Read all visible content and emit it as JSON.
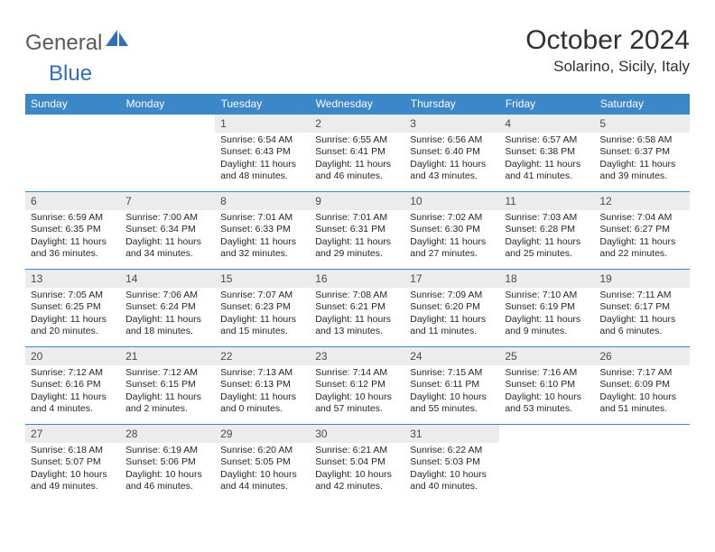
{
  "logo": {
    "text1": "General",
    "text2": "Blue"
  },
  "title": "October 2024",
  "location": "Solarino, Sicily, Italy",
  "colors": {
    "header_bg": "#3c87c8",
    "header_text": "#ffffff",
    "daynum_bg": "#ececec",
    "rule": "#3c87c8",
    "logo_gray": "#59595b",
    "logo_blue": "#2f6fb8"
  },
  "dayNames": [
    "Sunday",
    "Monday",
    "Tuesday",
    "Wednesday",
    "Thursday",
    "Friday",
    "Saturday"
  ],
  "weeks": [
    [
      {
        "n": "",
        "sr": "",
        "ss": "",
        "dl": ""
      },
      {
        "n": "",
        "sr": "",
        "ss": "",
        "dl": ""
      },
      {
        "n": "1",
        "sr": "Sunrise: 6:54 AM",
        "ss": "Sunset: 6:43 PM",
        "dl": "Daylight: 11 hours and 48 minutes."
      },
      {
        "n": "2",
        "sr": "Sunrise: 6:55 AM",
        "ss": "Sunset: 6:41 PM",
        "dl": "Daylight: 11 hours and 46 minutes."
      },
      {
        "n": "3",
        "sr": "Sunrise: 6:56 AM",
        "ss": "Sunset: 6:40 PM",
        "dl": "Daylight: 11 hours and 43 minutes."
      },
      {
        "n": "4",
        "sr": "Sunrise: 6:57 AM",
        "ss": "Sunset: 6:38 PM",
        "dl": "Daylight: 11 hours and 41 minutes."
      },
      {
        "n": "5",
        "sr": "Sunrise: 6:58 AM",
        "ss": "Sunset: 6:37 PM",
        "dl": "Daylight: 11 hours and 39 minutes."
      }
    ],
    [
      {
        "n": "6",
        "sr": "Sunrise: 6:59 AM",
        "ss": "Sunset: 6:35 PM",
        "dl": "Daylight: 11 hours and 36 minutes."
      },
      {
        "n": "7",
        "sr": "Sunrise: 7:00 AM",
        "ss": "Sunset: 6:34 PM",
        "dl": "Daylight: 11 hours and 34 minutes."
      },
      {
        "n": "8",
        "sr": "Sunrise: 7:01 AM",
        "ss": "Sunset: 6:33 PM",
        "dl": "Daylight: 11 hours and 32 minutes."
      },
      {
        "n": "9",
        "sr": "Sunrise: 7:01 AM",
        "ss": "Sunset: 6:31 PM",
        "dl": "Daylight: 11 hours and 29 minutes."
      },
      {
        "n": "10",
        "sr": "Sunrise: 7:02 AM",
        "ss": "Sunset: 6:30 PM",
        "dl": "Daylight: 11 hours and 27 minutes."
      },
      {
        "n": "11",
        "sr": "Sunrise: 7:03 AM",
        "ss": "Sunset: 6:28 PM",
        "dl": "Daylight: 11 hours and 25 minutes."
      },
      {
        "n": "12",
        "sr": "Sunrise: 7:04 AM",
        "ss": "Sunset: 6:27 PM",
        "dl": "Daylight: 11 hours and 22 minutes."
      }
    ],
    [
      {
        "n": "13",
        "sr": "Sunrise: 7:05 AM",
        "ss": "Sunset: 6:25 PM",
        "dl": "Daylight: 11 hours and 20 minutes."
      },
      {
        "n": "14",
        "sr": "Sunrise: 7:06 AM",
        "ss": "Sunset: 6:24 PM",
        "dl": "Daylight: 11 hours and 18 minutes."
      },
      {
        "n": "15",
        "sr": "Sunrise: 7:07 AM",
        "ss": "Sunset: 6:23 PM",
        "dl": "Daylight: 11 hours and 15 minutes."
      },
      {
        "n": "16",
        "sr": "Sunrise: 7:08 AM",
        "ss": "Sunset: 6:21 PM",
        "dl": "Daylight: 11 hours and 13 minutes."
      },
      {
        "n": "17",
        "sr": "Sunrise: 7:09 AM",
        "ss": "Sunset: 6:20 PM",
        "dl": "Daylight: 11 hours and 11 minutes."
      },
      {
        "n": "18",
        "sr": "Sunrise: 7:10 AM",
        "ss": "Sunset: 6:19 PM",
        "dl": "Daylight: 11 hours and 9 minutes."
      },
      {
        "n": "19",
        "sr": "Sunrise: 7:11 AM",
        "ss": "Sunset: 6:17 PM",
        "dl": "Daylight: 11 hours and 6 minutes."
      }
    ],
    [
      {
        "n": "20",
        "sr": "Sunrise: 7:12 AM",
        "ss": "Sunset: 6:16 PM",
        "dl": "Daylight: 11 hours and 4 minutes."
      },
      {
        "n": "21",
        "sr": "Sunrise: 7:12 AM",
        "ss": "Sunset: 6:15 PM",
        "dl": "Daylight: 11 hours and 2 minutes."
      },
      {
        "n": "22",
        "sr": "Sunrise: 7:13 AM",
        "ss": "Sunset: 6:13 PM",
        "dl": "Daylight: 11 hours and 0 minutes."
      },
      {
        "n": "23",
        "sr": "Sunrise: 7:14 AM",
        "ss": "Sunset: 6:12 PM",
        "dl": "Daylight: 10 hours and 57 minutes."
      },
      {
        "n": "24",
        "sr": "Sunrise: 7:15 AM",
        "ss": "Sunset: 6:11 PM",
        "dl": "Daylight: 10 hours and 55 minutes."
      },
      {
        "n": "25",
        "sr": "Sunrise: 7:16 AM",
        "ss": "Sunset: 6:10 PM",
        "dl": "Daylight: 10 hours and 53 minutes."
      },
      {
        "n": "26",
        "sr": "Sunrise: 7:17 AM",
        "ss": "Sunset: 6:09 PM",
        "dl": "Daylight: 10 hours and 51 minutes."
      }
    ],
    [
      {
        "n": "27",
        "sr": "Sunrise: 6:18 AM",
        "ss": "Sunset: 5:07 PM",
        "dl": "Daylight: 10 hours and 49 minutes."
      },
      {
        "n": "28",
        "sr": "Sunrise: 6:19 AM",
        "ss": "Sunset: 5:06 PM",
        "dl": "Daylight: 10 hours and 46 minutes."
      },
      {
        "n": "29",
        "sr": "Sunrise: 6:20 AM",
        "ss": "Sunset: 5:05 PM",
        "dl": "Daylight: 10 hours and 44 minutes."
      },
      {
        "n": "30",
        "sr": "Sunrise: 6:21 AM",
        "ss": "Sunset: 5:04 PM",
        "dl": "Daylight: 10 hours and 42 minutes."
      },
      {
        "n": "31",
        "sr": "Sunrise: 6:22 AM",
        "ss": "Sunset: 5:03 PM",
        "dl": "Daylight: 10 hours and 40 minutes."
      },
      {
        "n": "",
        "sr": "",
        "ss": "",
        "dl": ""
      },
      {
        "n": "",
        "sr": "",
        "ss": "",
        "dl": ""
      }
    ]
  ]
}
